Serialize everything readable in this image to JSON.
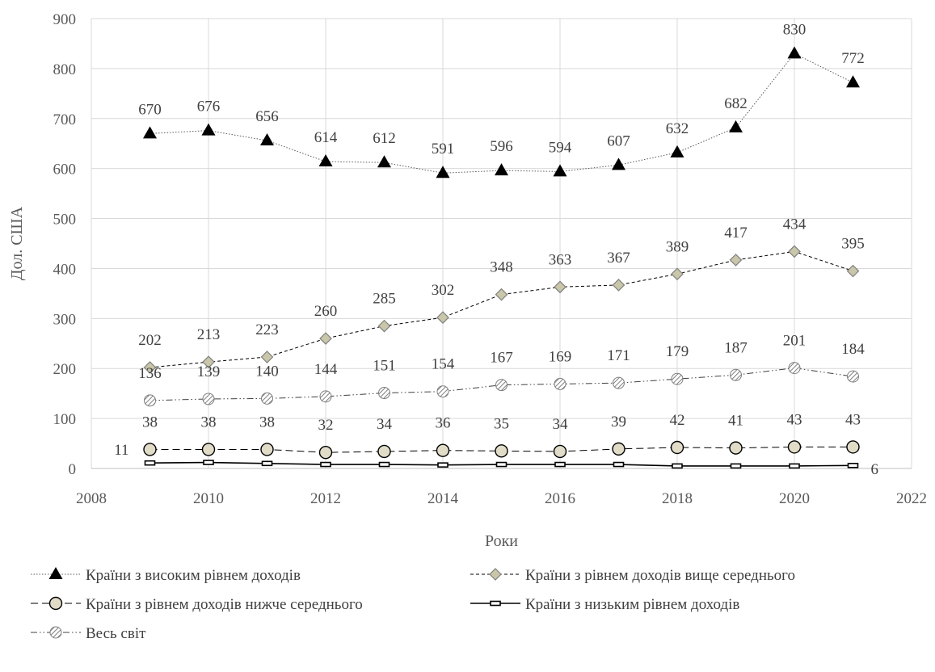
{
  "chart_data": {
    "type": "line",
    "xlabel": "Роки",
    "ylabel": "Дол. США",
    "xlim": [
      2008,
      2022
    ],
    "ylim": [
      0,
      900
    ],
    "xticks": [
      2008,
      2010,
      2012,
      2014,
      2016,
      2018,
      2020,
      2022
    ],
    "yticks": [
      0,
      100,
      200,
      300,
      400,
      500,
      600,
      700,
      800,
      900
    ],
    "grid": true,
    "legend_position": "bottom",
    "x": [
      2009,
      2010,
      2011,
      2012,
      2013,
      2014,
      2015,
      2016,
      2017,
      2018,
      2019,
      2020,
      2021
    ],
    "series": [
      {
        "name": "Країни з високим рівнем доходів",
        "values": [
          670,
          676,
          656,
          614,
          612,
          591,
          596,
          594,
          607,
          632,
          682,
          830,
          772
        ],
        "marker": "triangle",
        "line_style": "dotted",
        "color": "#000000",
        "labels_shown": [
          670,
          676,
          656,
          614,
          612,
          591,
          596,
          594,
          607,
          632,
          682,
          830,
          772
        ]
      },
      {
        "name": "Країни з рівнем доходів вище середнього",
        "values": [
          202,
          213,
          223,
          260,
          285,
          302,
          348,
          363,
          367,
          389,
          417,
          434,
          395
        ],
        "marker": "diamond",
        "line_style": "short-dash",
        "color": "#c9c6a9",
        "labels_shown": [
          202,
          213,
          223,
          260,
          285,
          302,
          348,
          363,
          367,
          389,
          417,
          434,
          395
        ]
      },
      {
        "name": "Країни з рівнем доходів нижче середнього",
        "values": [
          38,
          38,
          38,
          32,
          34,
          36,
          35,
          34,
          39,
          42,
          41,
          43,
          43
        ],
        "marker": "circle",
        "line_style": "long-dash",
        "color": "#e0dcc8",
        "labels_shown": [
          38,
          38,
          38,
          32,
          34,
          36,
          35,
          34,
          39,
          42,
          41,
          43,
          43
        ]
      },
      {
        "name": "Країни з низьким рівнем доходів",
        "values": [
          11,
          12,
          10,
          8,
          8,
          7,
          8,
          8,
          8,
          5,
          5,
          5,
          6
        ],
        "marker": "bar",
        "line_style": "solid",
        "color": "#000000",
        "labels_shown": [
          11,
          null,
          null,
          null,
          null,
          null,
          null,
          null,
          null,
          null,
          null,
          null,
          6
        ]
      },
      {
        "name": "Весь світ",
        "values": [
          136,
          139,
          140,
          144,
          151,
          154,
          167,
          169,
          171,
          179,
          187,
          201,
          184
        ],
        "marker": "hatched-circle",
        "line_style": "dash-dot-dot",
        "color": "#a6a6a6",
        "labels_shown": [
          136,
          139,
          140,
          144,
          151,
          154,
          167,
          169,
          171,
          179,
          187,
          201,
          184
        ]
      }
    ]
  }
}
